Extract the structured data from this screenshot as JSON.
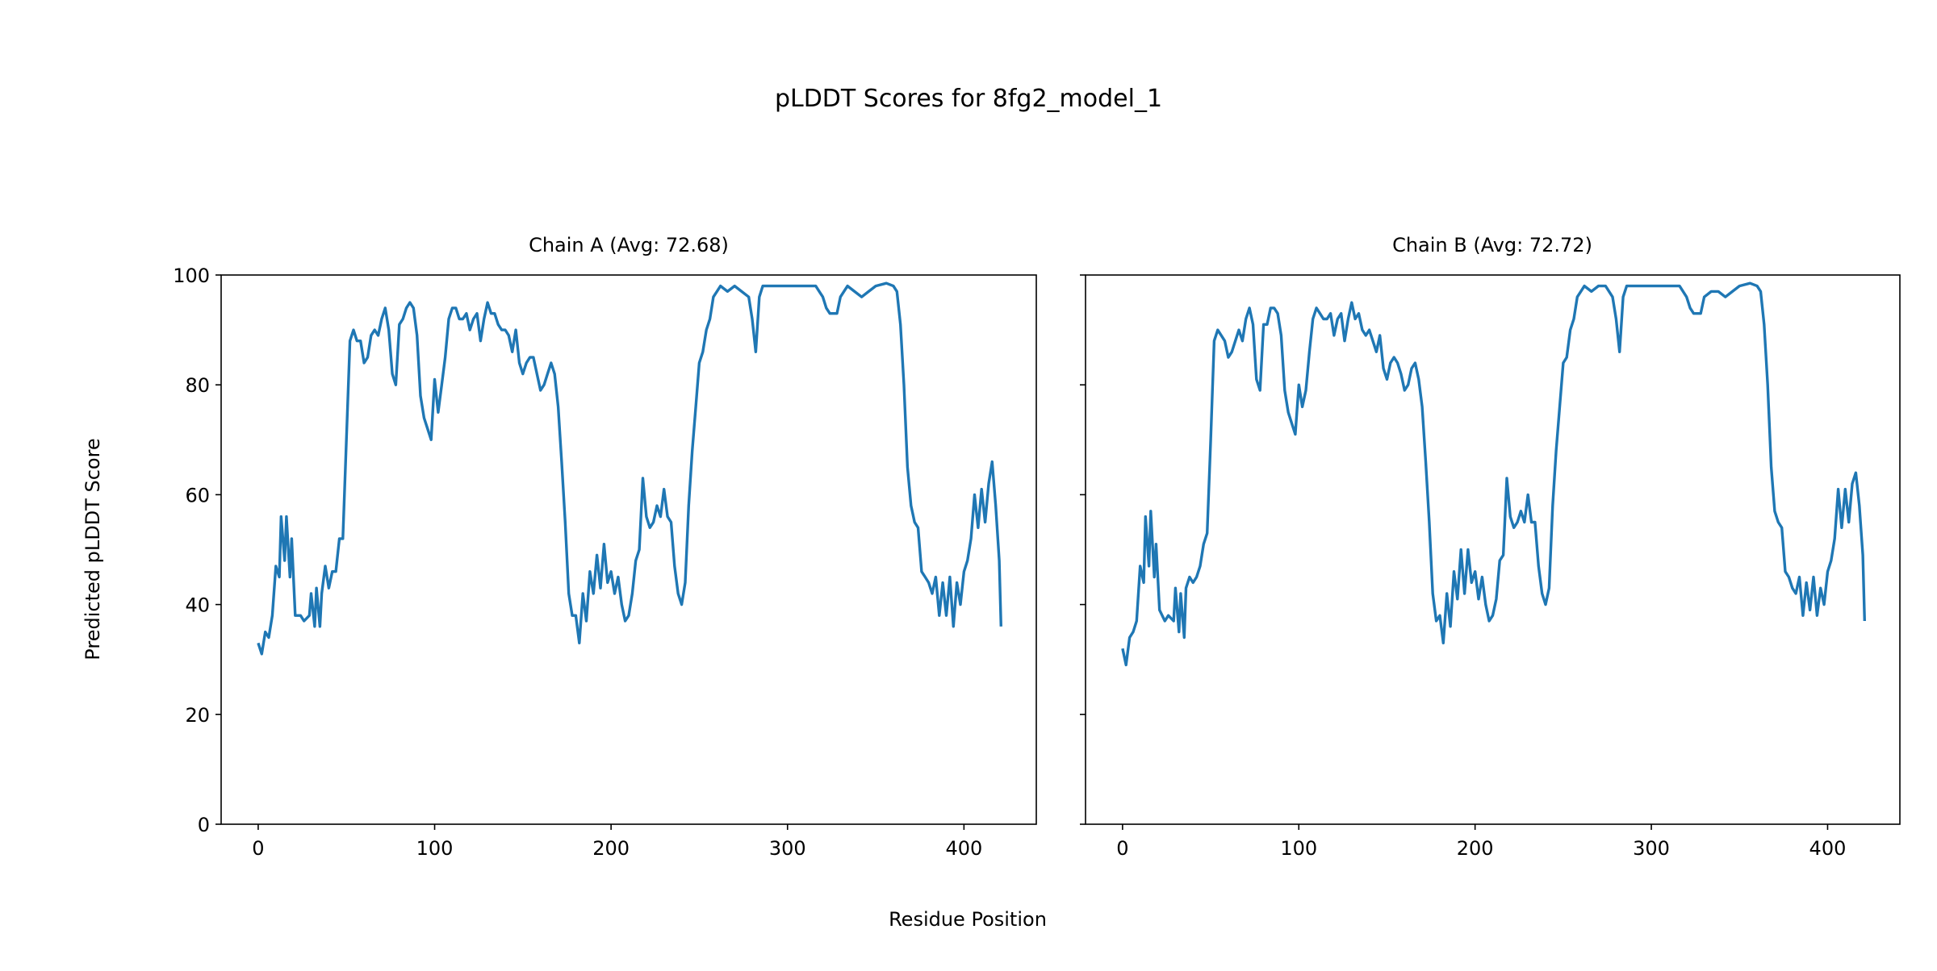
{
  "figure": {
    "title": "pLDDT Scores for 8fg2_model_1",
    "xlabel": "Residue Position",
    "ylabel": "Predicted pLDDT Score"
  },
  "chart_data": [
    {
      "type": "line",
      "title": "Chain A (Avg: 72.68)",
      "xlabel": "Residue Position",
      "ylabel": "Predicted pLDDT Score",
      "xlim": [
        -21,
        441
      ],
      "ylim": [
        0,
        100
      ],
      "xticks": [
        0,
        100,
        200,
        300,
        400
      ],
      "yticks": [
        0,
        20,
        40,
        60,
        80,
        100
      ],
      "color": "#1f77b4",
      "grid": false,
      "x": [
        0,
        2,
        4,
        6,
        8,
        10,
        12,
        13,
        15,
        16,
        18,
        19,
        21,
        24,
        26,
        29,
        30,
        32,
        33,
        35,
        36,
        38,
        40,
        42,
        44,
        46,
        48,
        50,
        52,
        54,
        56,
        58,
        60,
        62,
        64,
        66,
        68,
        70,
        72,
        74,
        76,
        78,
        80,
        82,
        84,
        86,
        88,
        90,
        92,
        94,
        96,
        98,
        100,
        102,
        104,
        106,
        108,
        110,
        112,
        114,
        116,
        118,
        120,
        122,
        124,
        126,
        128,
        130,
        132,
        134,
        136,
        138,
        140,
        142,
        144,
        146,
        148,
        150,
        152,
        154,
        156,
        158,
        160,
        162,
        164,
        166,
        168,
        170,
        172,
        174,
        176,
        178,
        180,
        182,
        184,
        186,
        188,
        190,
        192,
        194,
        196,
        198,
        200,
        202,
        204,
        206,
        208,
        210,
        212,
        214,
        216,
        218,
        220,
        222,
        224,
        226,
        228,
        230,
        232,
        234,
        236,
        238,
        240,
        242,
        244,
        246,
        248,
        250,
        252,
        254,
        256,
        258,
        260,
        262,
        266,
        270,
        274,
        278,
        280,
        282,
        284,
        286,
        290,
        300,
        310,
        316,
        318,
        320,
        322,
        324,
        328,
        330,
        334,
        338,
        342,
        346,
        350,
        356,
        360,
        362,
        364,
        366,
        368,
        370,
        372,
        374,
        376,
        378,
        380,
        382,
        384,
        386,
        388,
        390,
        392,
        394,
        396,
        398,
        400,
        402,
        404,
        406,
        408,
        410,
        412,
        414,
        416,
        418,
        420,
        421
      ],
      "y": [
        33,
        31,
        35,
        34,
        38,
        47,
        45,
        56,
        48,
        56,
        45,
        52,
        38,
        38,
        37,
        38,
        42,
        36,
        43,
        36,
        42,
        47,
        43,
        46,
        46,
        52,
        52,
        70,
        88,
        90,
        88,
        88,
        84,
        85,
        89,
        90,
        89,
        92,
        94,
        90,
        82,
        80,
        91,
        92,
        94,
        95,
        94,
        89,
        78,
        74,
        72,
        70,
        81,
        75,
        80,
        85,
        92,
        94,
        94,
        92,
        92,
        93,
        90,
        92,
        93,
        88,
        92,
        95,
        93,
        93,
        91,
        90,
        90,
        89,
        86,
        90,
        84,
        82,
        84,
        85,
        85,
        82,
        79,
        80,
        82,
        84,
        82,
        76,
        66,
        55,
        42,
        38,
        38,
        33,
        42,
        37,
        46,
        42,
        49,
        43,
        51,
        44,
        46,
        42,
        45,
        40,
        37,
        38,
        42,
        48,
        50,
        63,
        56,
        54,
        55,
        58,
        56,
        61,
        56,
        55,
        47,
        42,
        40,
        44,
        58,
        68,
        76,
        84,
        86,
        90,
        92,
        96,
        97,
        98,
        97,
        98,
        97,
        96,
        92,
        86,
        96,
        98,
        98,
        98,
        98,
        98,
        97,
        96,
        94,
        93,
        93,
        96,
        98,
        97,
        96,
        97,
        98,
        98.5,
        98,
        97,
        91,
        80,
        65,
        58,
        55,
        54,
        46,
        45,
        44,
        42,
        45,
        38,
        44,
        38,
        45,
        36,
        44,
        40,
        46,
        48,
        52,
        60,
        54,
        61,
        55,
        62,
        66,
        58,
        48,
        36
      ]
    },
    {
      "type": "line",
      "title": "Chain B (Avg: 72.72)",
      "xlabel": "Residue Position",
      "xlim": [
        -21,
        441
      ],
      "ylim": [
        0,
        100
      ],
      "xticks": [
        0,
        100,
        200,
        300,
        400
      ],
      "yticks": [
        0,
        20,
        40,
        60,
        80,
        100
      ],
      "color": "#1f77b4",
      "grid": false,
      "x": [
        0,
        2,
        4,
        6,
        8,
        10,
        12,
        13,
        15,
        16,
        18,
        19,
        21,
        24,
        26,
        29,
        30,
        32,
        33,
        35,
        36,
        38,
        40,
        42,
        44,
        46,
        48,
        50,
        52,
        54,
        56,
        58,
        60,
        62,
        64,
        66,
        68,
        70,
        72,
        74,
        76,
        78,
        80,
        82,
        84,
        86,
        88,
        90,
        92,
        94,
        96,
        98,
        100,
        102,
        104,
        106,
        108,
        110,
        112,
        114,
        116,
        118,
        120,
        122,
        124,
        126,
        128,
        130,
        132,
        134,
        136,
        138,
        140,
        142,
        144,
        146,
        148,
        150,
        152,
        154,
        156,
        158,
        160,
        162,
        164,
        166,
        168,
        170,
        172,
        174,
        176,
        178,
        180,
        182,
        184,
        186,
        188,
        190,
        192,
        194,
        196,
        198,
        200,
        202,
        204,
        206,
        208,
        210,
        212,
        214,
        216,
        218,
        220,
        222,
        224,
        226,
        228,
        230,
        232,
        234,
        236,
        238,
        240,
        242,
        244,
        246,
        248,
        250,
        252,
        254,
        256,
        258,
        260,
        262,
        266,
        270,
        274,
        278,
        280,
        282,
        284,
        286,
        290,
        300,
        310,
        316,
        318,
        320,
        322,
        324,
        328,
        330,
        334,
        338,
        342,
        346,
        350,
        356,
        360,
        362,
        364,
        366,
        368,
        370,
        372,
        374,
        376,
        378,
        380,
        382,
        384,
        386,
        388,
        390,
        392,
        394,
        396,
        398,
        400,
        402,
        404,
        406,
        408,
        410,
        412,
        414,
        416,
        418,
        420,
        421
      ],
      "y": [
        32,
        29,
        34,
        35,
        37,
        47,
        44,
        56,
        47,
        57,
        45,
        51,
        39,
        37,
        38,
        37,
        43,
        35,
        42,
        34,
        43,
        45,
        44,
        45,
        47,
        51,
        53,
        70,
        88,
        90,
        89,
        88,
        85,
        86,
        88,
        90,
        88,
        92,
        94,
        91,
        81,
        79,
        91,
        91,
        94,
        94,
        93,
        89,
        79,
        75,
        73,
        71,
        80,
        76,
        79,
        86,
        92,
        94,
        93,
        92,
        92,
        93,
        89,
        92,
        93,
        88,
        92,
        95,
        92,
        93,
        90,
        89,
        90,
        88,
        86,
        89,
        83,
        81,
        84,
        85,
        84,
        82,
        79,
        80,
        83,
        84,
        81,
        76,
        66,
        55,
        42,
        37,
        38,
        33,
        42,
        36,
        46,
        41,
        50,
        42,
        50,
        44,
        46,
        41,
        45,
        40,
        37,
        38,
        41,
        48,
        49,
        63,
        56,
        54,
        55,
        57,
        55,
        60,
        55,
        55,
        47,
        42,
        40,
        43,
        58,
        68,
        76,
        84,
        85,
        90,
        92,
        96,
        97,
        98,
        97,
        98,
        98,
        96,
        92,
        86,
        96,
        98,
        98,
        98,
        98,
        98,
        97,
        96,
        94,
        93,
        93,
        96,
        97,
        97,
        96,
        97,
        98,
        98.5,
        98,
        97,
        91,
        80,
        65,
        57,
        55,
        54,
        46,
        45,
        43,
        42,
        45,
        38,
        44,
        39,
        45,
        38,
        43,
        40,
        46,
        48,
        52,
        61,
        54,
        61,
        55,
        62,
        64,
        58,
        49,
        37
      ]
    }
  ]
}
